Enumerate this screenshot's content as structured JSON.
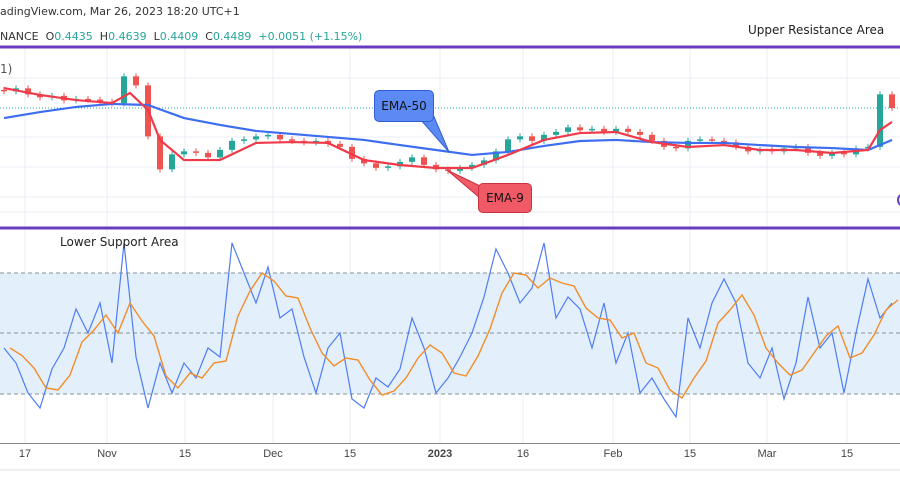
{
  "header": {
    "title": "adingView.com, Mar 26, 2023 18:20 UTC+1",
    "symbol": "NANCE",
    "open_label": "O",
    "open": "0.4435",
    "high_label": "H",
    "high": "0.4639",
    "low_label": "L",
    "low": "0.4409",
    "close_label": "C",
    "close": "0.4489",
    "change": "+0.0051 (+1.15%)",
    "indicator_fragment": "1)"
  },
  "annotations": {
    "upper": "Upper Resistance Area",
    "lower": "Lower Support Area",
    "ema50": "EMA-50",
    "ema9": "EMA-9"
  },
  "colors": {
    "up": "#26a69a",
    "down": "#ef5350",
    "ema9": "#f03a4a",
    "ema50": "#3d6ef0",
    "purple": "#6a3cc0",
    "rsi": "#4f7cf5",
    "rsi_ma": "#f28c28",
    "band": "#e3f0fb"
  },
  "chart_data": [
    {
      "type": "candlestick",
      "title": "",
      "last_price": 0.4489,
      "closes": [
        0.46,
        0.462,
        0.458,
        0.456,
        0.457,
        0.454,
        0.455,
        0.4545,
        0.453,
        0.452,
        0.47,
        0.464,
        0.43,
        0.408,
        0.418,
        0.42,
        0.419,
        0.416,
        0.421,
        0.427,
        0.428,
        0.43,
        0.431,
        0.428,
        0.427,
        0.426,
        0.427,
        0.425,
        0.423,
        0.415,
        0.412,
        0.409,
        0.41,
        0.413,
        0.416,
        0.411,
        0.408,
        0.407,
        0.409,
        0.411,
        0.414,
        0.42,
        0.428,
        0.43,
        0.427,
        0.431,
        0.433,
        0.436,
        0.434,
        0.435,
        0.433,
        0.435,
        0.433,
        0.431,
        0.427,
        0.423,
        0.422,
        0.427,
        0.428,
        0.427,
        0.426,
        0.423,
        0.42,
        0.421,
        0.42,
        0.422,
        0.423,
        0.419,
        0.417,
        0.419,
        0.418,
        0.422,
        0.423,
        0.458,
        0.4489
      ],
      "series": [
        {
          "name": "EMA-50",
          "points": [
            [
              0,
              0.4422
            ],
            [
              3,
              0.4462
            ],
            [
              6,
              0.4496
            ],
            [
              9,
              0.4516
            ],
            [
              12,
              0.4509
            ],
            [
              15,
              0.4422
            ],
            [
              18,
              0.4376
            ],
            [
              21,
              0.4336
            ],
            [
              24,
              0.4316
            ],
            [
              27,
              0.4296
            ],
            [
              30,
              0.4276
            ],
            [
              33,
              0.4242
            ],
            [
              36,
              0.4209
            ],
            [
              39,
              0.4176
            ],
            [
              42,
              0.4196
            ],
            [
              45,
              0.4236
            ],
            [
              48,
              0.4269
            ],
            [
              51,
              0.4276
            ],
            [
              54,
              0.4262
            ],
            [
              57,
              0.4256
            ],
            [
              60,
              0.4256
            ],
            [
              63,
              0.4242
            ],
            [
              66,
              0.4229
            ],
            [
              69,
              0.4222
            ],
            [
              72,
              0.4209
            ],
            [
              74,
              0.4276
            ]
          ]
        },
        {
          "name": "EMA-9",
          "points": [
            [
              0,
              0.4622
            ],
            [
              3,
              0.4576
            ],
            [
              6,
              0.4542
            ],
            [
              9,
              0.4522
            ],
            [
              10.5,
              0.4589
            ],
            [
              12,
              0.4476
            ],
            [
              13,
              0.4276
            ],
            [
              15,
              0.4142
            ],
            [
              18,
              0.4142
            ],
            [
              21,
              0.4256
            ],
            [
              24,
              0.4262
            ],
            [
              27,
              0.4256
            ],
            [
              30,
              0.4142
            ],
            [
              33,
              0.4109
            ],
            [
              36,
              0.4089
            ],
            [
              39,
              0.4089
            ],
            [
              42,
              0.4176
            ],
            [
              45,
              0.4276
            ],
            [
              48,
              0.4322
            ],
            [
              51,
              0.4329
            ],
            [
              54,
              0.4262
            ],
            [
              57,
              0.4229
            ],
            [
              60,
              0.4242
            ],
            [
              63,
              0.4209
            ],
            [
              66,
              0.4209
            ],
            [
              69,
              0.4189
            ],
            [
              72,
              0.4209
            ],
            [
              73,
              0.4342
            ],
            [
              74,
              0.4396
            ]
          ]
        }
      ]
    },
    {
      "type": "line",
      "title": "",
      "ylim": [
        0,
        100
      ],
      "levels": [
        70,
        50,
        30
      ],
      "values": [
        45,
        40,
        30,
        25,
        38,
        45,
        58,
        50,
        60,
        40,
        80,
        42,
        25,
        40,
        30,
        40,
        35,
        45,
        42,
        80,
        70,
        60,
        72,
        55,
        58,
        42,
        30,
        45,
        50,
        28,
        25,
        35,
        32,
        38,
        55,
        45,
        30,
        35,
        42,
        50,
        62,
        78,
        70,
        60,
        65,
        80,
        55,
        62,
        58,
        45,
        60,
        40,
        50,
        30,
        35,
        28,
        22,
        55,
        45,
        60,
        68,
        60,
        40,
        35,
        45,
        28,
        40,
        62,
        45,
        50,
        30,
        50,
        68,
        55,
        60
      ]
    }
  ],
  "x_axis": {
    "ticks": [
      {
        "label": "17"
      },
      {
        "label": "Nov"
      },
      {
        "label": "15"
      },
      {
        "label": "Dec"
      },
      {
        "label": "15"
      },
      {
        "label": "2023"
      },
      {
        "label": "16"
      },
      {
        "label": "Feb"
      },
      {
        "label": "15"
      },
      {
        "label": "Mar"
      },
      {
        "label": "15"
      }
    ]
  }
}
